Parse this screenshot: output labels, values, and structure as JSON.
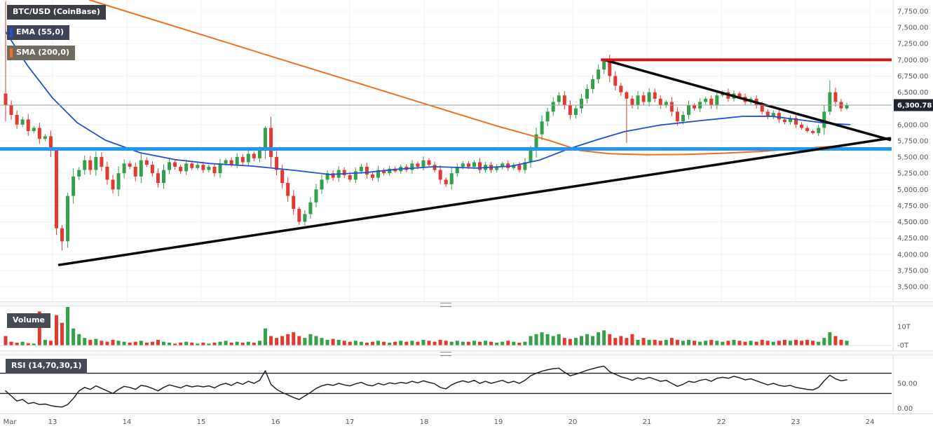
{
  "chart": {
    "colors_note": "see chart_data.colors"
  },
  "chart_data": {
    "type": "candlestick",
    "title": "BTC/USD (CoinBase)",
    "colors": {
      "up": "#34a04a",
      "down": "#e23a30",
      "ema": "#2251d0",
      "sma": "#ef7021",
      "resistance": "#d01616",
      "support": "#2196f3",
      "trendline": "#0b0b0b",
      "symbol_badge_bg": "#3c4046",
      "ema_badge_bg": "#3e4358",
      "sma_badge_bg": "#6f6b60",
      "indicator_badge_bg": "#454a54",
      "price_badge_bg": "#20242f"
    },
    "x_axis_labels": [
      "Mar",
      "13",
      "14",
      "15",
      "16",
      "17",
      "18",
      "19",
      "20",
      "21",
      "22",
      "23",
      "24"
    ],
    "price_axis": {
      "ticks": [
        {
          "label": "7,750.00",
          "value": 7750
        },
        {
          "label": "7,500.00",
          "value": 7500
        },
        {
          "label": "7,250.00",
          "value": 7250
        },
        {
          "label": "7,000.00",
          "value": 7000
        },
        {
          "label": "6,750.00",
          "value": 6750
        },
        {
          "label": "6,500.00",
          "value": 6500
        },
        {
          "label": "6,000.00",
          "value": 6000
        },
        {
          "label": "5,750.00",
          "value": 5750
        },
        {
          "label": "5,500.00",
          "value": 5500
        },
        {
          "label": "5,250.00",
          "value": 5250
        },
        {
          "label": "5,000.00",
          "value": 5000
        },
        {
          "label": "4,750.00",
          "value": 4750
        },
        {
          "label": "4,500.00",
          "value": 4500
        },
        {
          "label": "4,250.00",
          "value": 4250
        },
        {
          "label": "4,000.00",
          "value": 4000
        },
        {
          "label": "3,750.00",
          "value": 3750
        },
        {
          "label": "3,500.00",
          "value": 3500
        }
      ],
      "range": [
        3500,
        7750
      ]
    },
    "current_price": {
      "label": "6,300.78",
      "value": 6300.78
    },
    "candles": {
      "first_open": 6480,
      "closes": [
        6300,
        6150,
        6000,
        6080,
        5900,
        5950,
        5780,
        5820,
        5600,
        4400,
        4200,
        4900,
        5200,
        5300,
        5450,
        5300,
        5500,
        5350,
        5150,
        5000,
        5250,
        5400,
        5350,
        5200,
        5450,
        5380,
        5250,
        5100,
        5300,
        5420,
        5350,
        5280,
        5400,
        5330,
        5380,
        5300,
        5350,
        5250,
        5400,
        5450,
        5380,
        5500,
        5420,
        5550,
        5480,
        5600,
        5950,
        5500,
        5300,
        5100,
        4900,
        4700,
        4500,
        4620,
        4800,
        5000,
        5150,
        5250,
        5180,
        5300,
        5220,
        5150,
        5280,
        5350,
        5230,
        5180,
        5300,
        5250,
        5320,
        5280,
        5350,
        5300,
        5400,
        5350,
        5450,
        5380,
        5300,
        5150,
        5080,
        5250,
        5350,
        5400,
        5350,
        5420,
        5300,
        5380,
        5300,
        5350,
        5400,
        5330,
        5380,
        5300,
        5420,
        5600,
        5850,
        6050,
        6200,
        6350,
        6450,
        6300,
        6150,
        6250,
        6400,
        6550,
        6700,
        6850,
        6980,
        6750,
        6600,
        6500,
        6400,
        6300,
        6450,
        6350,
        6500,
        6400,
        6300,
        6350,
        6200,
        6050,
        6150,
        6300,
        6250,
        6350,
        6400,
        6300,
        6450,
        6500,
        6400,
        6480,
        6430,
        6350,
        6400,
        6300,
        6200,
        6120,
        6180,
        6080,
        6040,
        6100,
        6000,
        5950,
        5900,
        5870,
        5950,
        6200,
        6500,
        6350,
        6250,
        6300.78
      ],
      "wick_overrides": {
        "0": [
          7900,
          6050
        ],
        "9": [
          5650,
          4300
        ],
        "10": [
          4450,
          4060
        ],
        "11": [
          4950,
          4100
        ],
        "46": [
          5980,
          5470
        ],
        "52": [
          4730,
          4450
        ],
        "106": [
          7000,
          6780
        ],
        "110": [
          6520,
          5720
        ],
        "146": [
          6680,
          6150
        ]
      }
    },
    "overlays": {
      "ema55": {
        "label": "EMA (55,0)",
        "points": [
          [
            12.37,
            7430
          ],
          [
            12.67,
            6900
          ],
          [
            13.0,
            6410
          ],
          [
            13.33,
            6030
          ],
          [
            13.71,
            5760
          ],
          [
            14.18,
            5565
          ],
          [
            14.65,
            5460
          ],
          [
            15.12,
            5400
          ],
          [
            15.69,
            5360
          ],
          [
            16.25,
            5295
          ],
          [
            16.73,
            5230
          ],
          [
            17.2,
            5260
          ],
          [
            17.67,
            5315
          ],
          [
            18.14,
            5350
          ],
          [
            18.71,
            5330
          ],
          [
            19.18,
            5360
          ],
          [
            19.56,
            5455
          ],
          [
            19.93,
            5620
          ],
          [
            20.31,
            5760
          ],
          [
            20.69,
            5890
          ],
          [
            21.16,
            5990
          ],
          [
            21.73,
            6063
          ],
          [
            22.29,
            6128
          ],
          [
            22.67,
            6130
          ],
          [
            23.05,
            6075
          ],
          [
            23.42,
            6020
          ],
          [
            23.73,
            6000
          ]
        ]
      },
      "sma200": {
        "label": "SMA (200,0)",
        "points": [
          [
            13.5,
            7923
          ],
          [
            14.0,
            7745
          ],
          [
            15.0,
            7390
          ],
          [
            16.0,
            7033
          ],
          [
            17.0,
            6680
          ],
          [
            18.0,
            6325
          ],
          [
            19.0,
            5972
          ],
          [
            19.7,
            5750
          ],
          [
            20.1,
            5600
          ],
          [
            20.5,
            5550
          ],
          [
            21.0,
            5535
          ],
          [
            21.5,
            5540
          ],
          [
            22.0,
            5558
          ],
          [
            22.5,
            5585
          ],
          [
            23.0,
            5625
          ],
          [
            23.5,
            5665
          ],
          [
            23.73,
            5690
          ]
        ]
      }
    },
    "levels": {
      "resistance": {
        "value": 7000,
        "from_day": 20.38
      },
      "support": {
        "value": 5625
      }
    },
    "trendlines": [
      {
        "name": "ascending-support-trendline",
        "from": [
          13.09,
          3835
        ],
        "to": [
          24.27,
          5790
        ]
      },
      {
        "name": "descending-resistance-trendline",
        "from": [
          20.42,
          7000
        ],
        "to": [
          24.27,
          5765
        ]
      }
    ],
    "volume": {
      "label": "Volume",
      "axis_labels": [
        {
          "label": "10T",
          "value": 10
        },
        {
          "label": "-0T",
          "value": 0
        }
      ],
      "unit": "T",
      "values": [
        5,
        2,
        1.5,
        2,
        1.2,
        1,
        18,
        3,
        2.5,
        16,
        12,
        21,
        9,
        6,
        4,
        3,
        3.5,
        2.5,
        2,
        3,
        2.5,
        2,
        1.5,
        2,
        2.5,
        1.5,
        2,
        3,
        2,
        1.5,
        1,
        1.5,
        2,
        1.5,
        1,
        1.5,
        1,
        1.5,
        2,
        2.5,
        1.5,
        2,
        1.5,
        2,
        1.5,
        2.5,
        9,
        5,
        4,
        5,
        6,
        7,
        5,
        4,
        6,
        5,
        4,
        3,
        3.5,
        3,
        2.5,
        2,
        2.5,
        2,
        1.5,
        2,
        2.5,
        2,
        1.5,
        2,
        2.5,
        2,
        2.5,
        2,
        3,
        2.5,
        2,
        3,
        2.5,
        2,
        2.5,
        2,
        2,
        2.5,
        2,
        2.5,
        2,
        1.5,
        2,
        2.5,
        2,
        1.5,
        2,
        5,
        6,
        7,
        6,
        5,
        6,
        4,
        3.5,
        4,
        5,
        6,
        5,
        7,
        8,
        6,
        4,
        5,
        4,
        6,
        3,
        4,
        3,
        3,
        2.5,
        3,
        4,
        3,
        2.5,
        3,
        2.5,
        2,
        2.5,
        3,
        2.5,
        2,
        2.5,
        3,
        2.5,
        2,
        2.5,
        2,
        3,
        2.5,
        2,
        2.5,
        3,
        2.5,
        3,
        2.5,
        3,
        2.5,
        2,
        4,
        7,
        5,
        3,
        2.5
      ]
    },
    "rsi": {
      "label": "RSI (14,70,30,1)",
      "upper_band": 70,
      "lower_band": 30,
      "axis_labels": [
        {
          "label": "50.00",
          "value": 50
        },
        {
          "label": "0.00",
          "value": 0
        }
      ],
      "values": [
        35,
        25,
        15,
        18,
        10,
        12,
        8,
        9,
        6,
        4,
        3,
        8,
        20,
        35,
        42,
        38,
        45,
        40,
        35,
        30,
        38,
        44,
        42,
        38,
        46,
        44,
        40,
        35,
        42,
        47,
        44,
        41,
        46,
        43,
        45,
        43,
        45,
        41,
        47,
        50,
        46,
        52,
        48,
        54,
        50,
        56,
        75,
        48,
        38,
        32,
        27,
        22,
        18,
        25,
        32,
        40,
        45,
        48,
        46,
        50,
        47,
        45,
        49,
        52,
        47,
        45,
        50,
        47,
        51,
        49,
        52,
        50,
        54,
        51,
        55,
        52,
        49,
        42,
        39,
        47,
        52,
        55,
        52,
        56,
        50,
        54,
        50,
        53,
        56,
        51,
        54,
        50,
        56,
        65,
        70,
        74,
        77,
        79,
        80,
        72,
        65,
        68,
        72,
        76,
        79,
        82,
        84,
        73,
        68,
        63,
        60,
        56,
        61,
        58,
        62,
        58,
        54,
        56,
        50,
        44,
        48,
        54,
        52,
        56,
        58,
        54,
        60,
        62,
        60,
        64,
        61,
        57,
        59,
        55,
        51,
        47,
        50,
        46,
        44,
        46,
        42,
        40,
        38,
        37,
        42,
        55,
        66,
        59,
        55,
        57
      ]
    }
  }
}
